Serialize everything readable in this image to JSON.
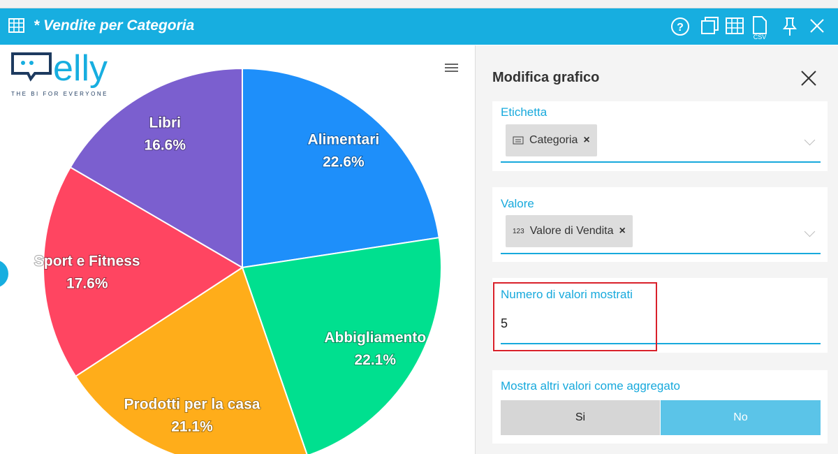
{
  "window": {
    "title": "* Vendite per Categoria",
    "csv_icon_label": "CSV"
  },
  "logo": {
    "name": "elly",
    "tagline": "THE BI FOR EVERYONE"
  },
  "chart_data": {
    "type": "pie",
    "categories": [
      "Alimentari",
      "Abbigliamento",
      "Prodotti per la casa",
      "Sport e Fitness",
      "Libri"
    ],
    "values": [
      22.6,
      22.1,
      21.1,
      17.6,
      16.6
    ],
    "value_labels": [
      "22.6%",
      "22.1%",
      "21.1%",
      "17.6%",
      "16.6%"
    ],
    "colors": [
      "#1e8ffa",
      "#00e08f",
      "#ffad1a",
      "#ff4561",
      "#7b5fcf"
    ]
  },
  "panel": {
    "title": "Modifica grafico",
    "label_field": {
      "label": "Etichetta",
      "chip": "Categoria",
      "remove": "×"
    },
    "value_field": {
      "label": "Valore",
      "chip_icon": "123",
      "chip": "Valore di Vendita",
      "remove": "×"
    },
    "count_field": {
      "label": "Numero di valori mostrati",
      "value": "5"
    },
    "aggregate_field": {
      "label": "Mostra altri valori come aggregato",
      "options": [
        "Si",
        "No"
      ]
    }
  }
}
